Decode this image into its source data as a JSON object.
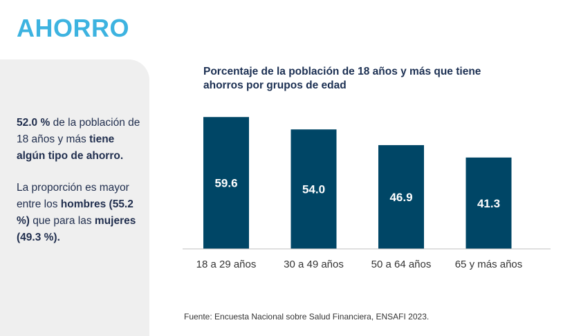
{
  "header": {
    "title": "AHORRO"
  },
  "side": {
    "p1_value": "52.0 %",
    "p1_text": " de la población de 18 años y más ",
    "p1_bold": "tiene algún tipo de ahorro.",
    "p2_text": "La proporción es mayor entre los ",
    "p2_men": "hombres (55.2 %)",
    "p2_mid": " que para las ",
    "p2_women": "mujeres (49.3 %)."
  },
  "source": "Fuente: Encuesta Nacional sobre Salud Financiera, ENSAFI 2023.",
  "colors": {
    "title_accent": "#3db3e0",
    "bar": "#004666",
    "panel": "#efefef"
  },
  "chart_data": {
    "type": "bar",
    "title": "Porcentaje de la población de 18 años y más que tiene ahorros por grupos de edad",
    "categories": [
      "18 a 29 años",
      "30 a 49 años",
      "50 a 64 años",
      "65 y más años"
    ],
    "values": [
      59.6,
      54.0,
      46.9,
      41.3
    ],
    "value_labels": [
      "59.6",
      "54.0",
      "46.9",
      "41.3"
    ],
    "xlabel": "",
    "ylabel": "",
    "ylim": [
      0,
      100
    ],
    "grid": false,
    "legend": "none"
  }
}
